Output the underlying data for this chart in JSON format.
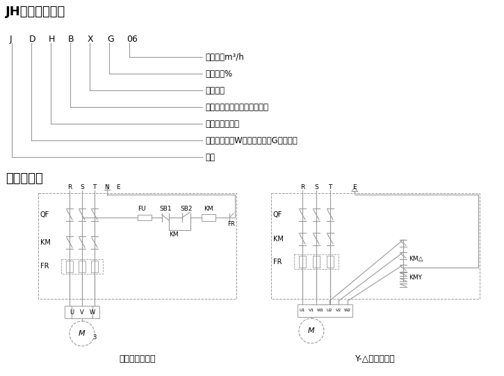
{
  "title1": "JH系列型号命名",
  "title2": "电器接线图",
  "letters": [
    "J",
    "D",
    "H",
    "B",
    "X",
    "G",
    "06"
  ],
  "descriptions": [
    "额定风量m³/h",
    "高效回收%",
    "显热回收",
    "表示带表冷器，不带时不标注",
    "节能新风换气机",
    "表示吸顶式，W表示外挂式，G表示柜式",
    "金属"
  ],
  "line_color": "#999999",
  "text_color": "#000000",
  "bg_color": "#ffffff",
  "diagram1_title": "直接起动原理图",
  "diagram2_title": "Y-△起动原理图"
}
